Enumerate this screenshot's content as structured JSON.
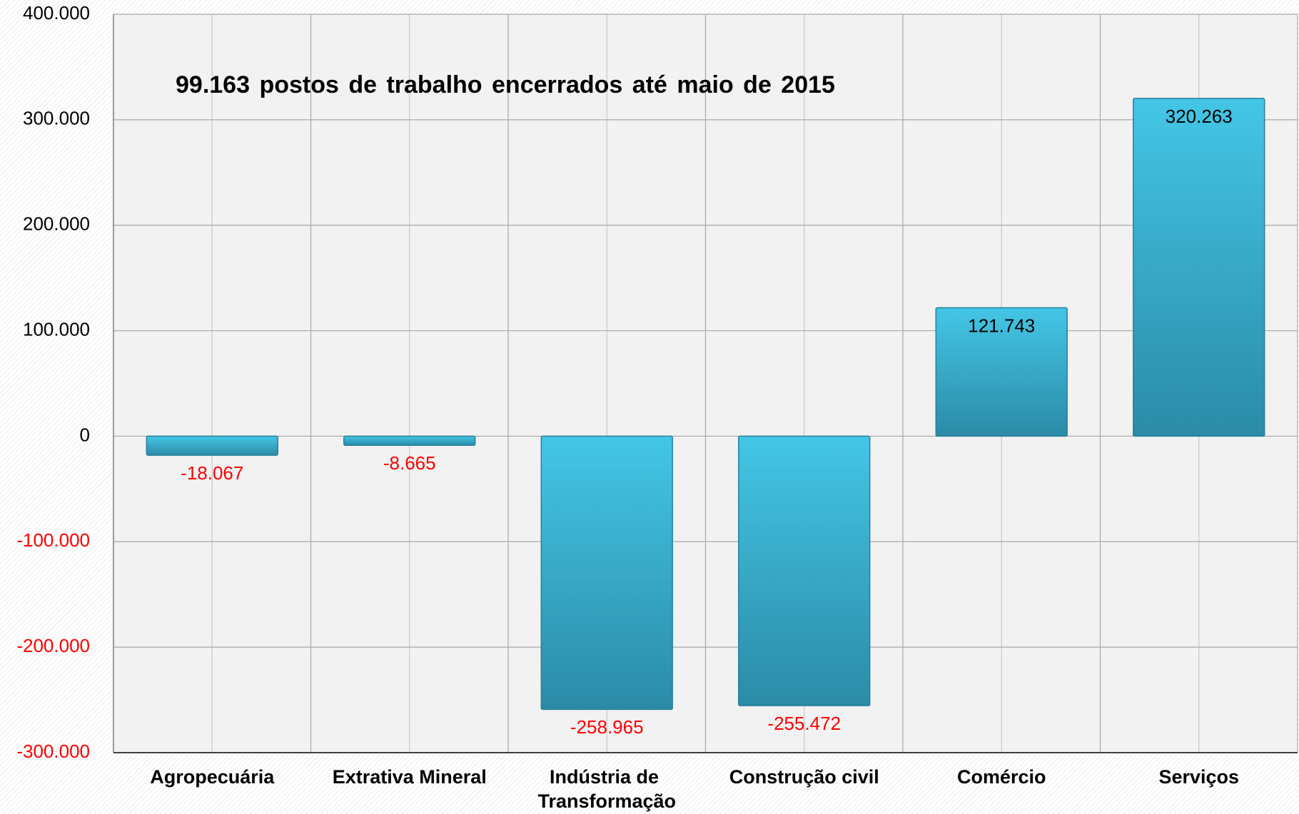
{
  "chart_data": {
    "type": "bar",
    "title": "99.163 postos de trabalho encerrados até maio de 2015",
    "categories": [
      "Agropecuária",
      "Extrativa Mineral",
      "Indústria de Transformação",
      "Construção civil",
      "Comércio",
      "Serviços"
    ],
    "values": [
      -18067,
      -8665,
      -258965,
      -255472,
      121743,
      320263
    ],
    "value_labels": [
      "-18.067",
      "-8.665",
      "-258.965",
      "-255.472",
      "121.743",
      "320.263"
    ],
    "color": "#3bbfe0",
    "label_color": "#000000",
    "negative_label_color": "#ff0000",
    "ylim": [
      -300000,
      400000
    ],
    "yticks": [
      {
        "value": -300000,
        "label": "-300.000"
      },
      {
        "value": -200000,
        "label": "-200.000"
      },
      {
        "value": -100000,
        "label": "-100.000"
      },
      0,
      {
        "value": 100000,
        "label": "100.000"
      },
      {
        "value": 200000,
        "label": "200.000"
      },
      {
        "value": 300000,
        "label": "300.000"
      },
      {
        "value": 400000,
        "label": "400.000"
      }
    ],
    "grid": true
  }
}
